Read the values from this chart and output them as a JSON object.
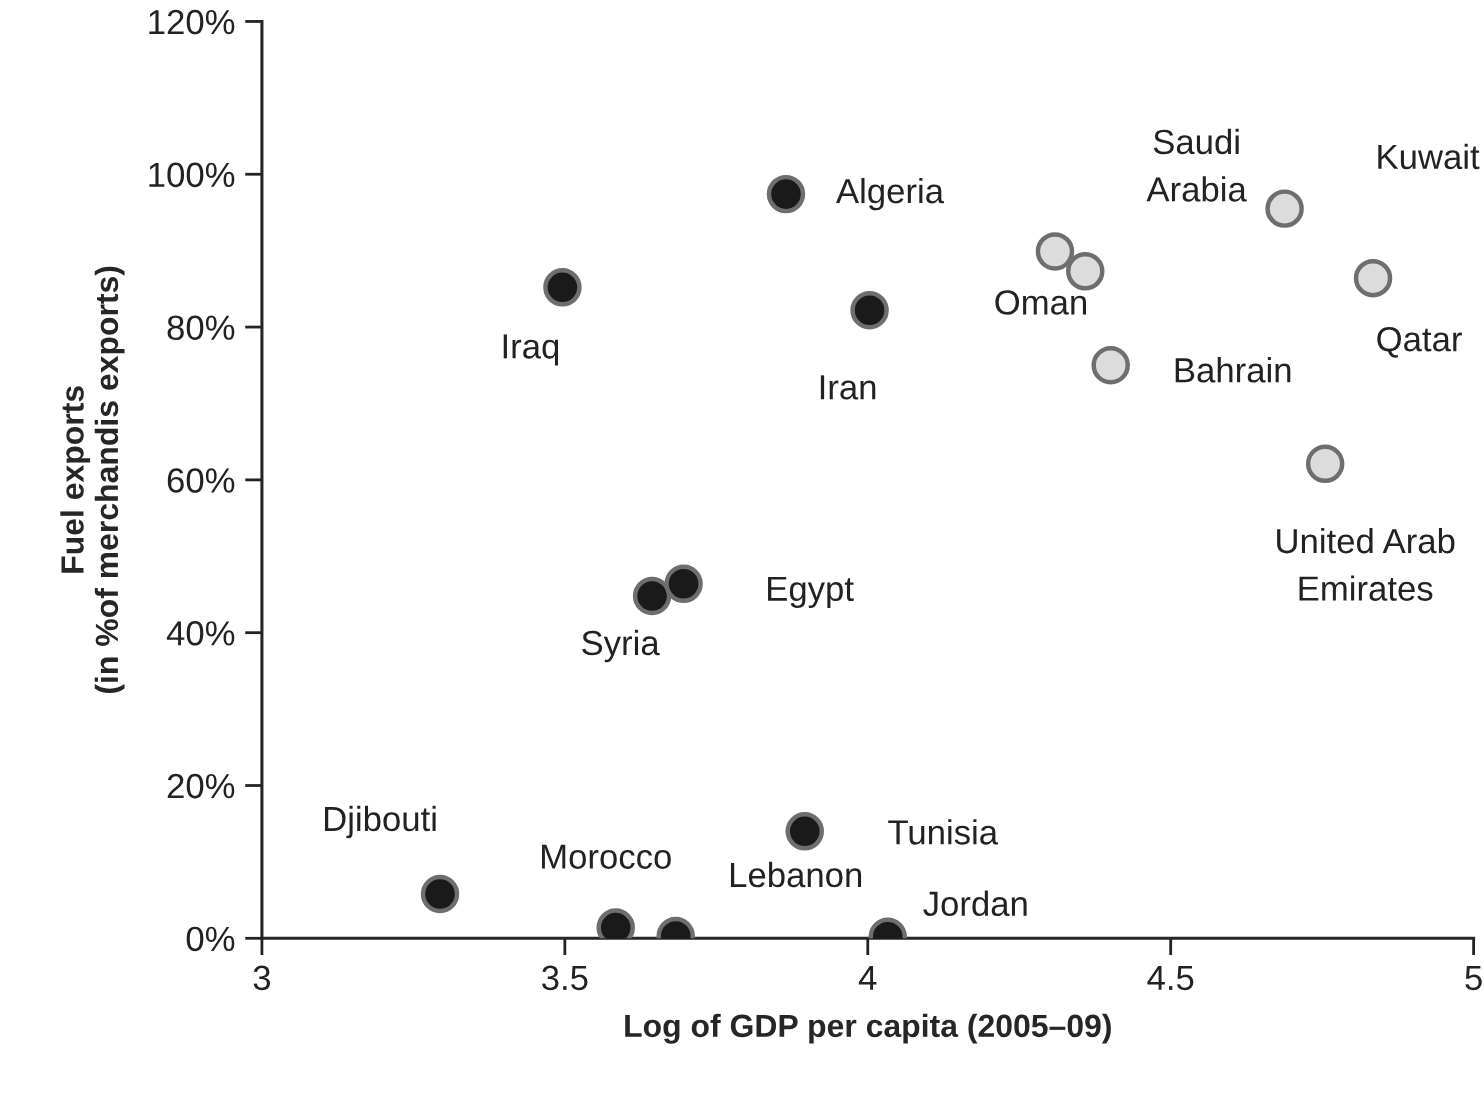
{
  "chart_data": {
    "type": "scatter",
    "xlabel": "Log of GDP per capita (2005–09)",
    "ylabel": "Fuel exports\n(in %of merchandis exports)",
    "series": [
      {
        "color": "#1a1a1a",
        "x": [
          3.496,
          3.865,
          4.003,
          3.644,
          3.696,
          3.896,
          3.294,
          3.584,
          3.683,
          4.033
        ],
        "values": [
          85.2,
          97.4,
          82.2,
          44.8,
          46.4,
          14.0,
          5.8,
          1.4,
          0.3,
          0.2
        ]
      },
      {
        "color": "#dcdcdc",
        "x": [
          4.309,
          4.359,
          4.401,
          4.688,
          4.834,
          4.755
        ],
        "values": [
          89.9,
          87.3,
          75.0,
          95.5,
          86.4,
          62.1
        ]
      }
    ],
    "annotations": [
      {
        "text": "Iraq",
        "x": 3.496,
        "y": 85.2
      },
      {
        "text": "Algeria",
        "x": 3.865,
        "y": 97.4
      },
      {
        "text": "Iran",
        "x": 4.003,
        "y": 82.2
      },
      {
        "text": "Oman",
        "x": 4.309,
        "y": 89.9
      },
      {
        "text": "Saudi\nArabia",
        "x": 4.688,
        "y": 95.5
      },
      "Kuwait",
      {
        "text": "Qatar",
        "x": 4.834,
        "y": 86.4
      },
      {
        "text": "Bahrain",
        "x": 4.401,
        "y": 75.0
      },
      {
        "text": "United Arab\nEmirates",
        "x": 4.755,
        "y": 62.1
      },
      {
        "text": "Egypt",
        "x": 3.696,
        "y": 46.4
      },
      {
        "text": "Syria",
        "x": 3.644,
        "y": 44.8
      },
      {
        "text": "Tunisia",
        "x": 3.896,
        "y": 14.0
      },
      {
        "text": "Djibouti",
        "x": 3.294,
        "y": 5.8
      },
      {
        "text": "Morocco",
        "x": 3.584,
        "y": 1.4
      },
      {
        "text": "Lebanon",
        "x": 3.683,
        "y": 0.3
      },
      {
        "text": "Jordan",
        "x": 4.033,
        "y": 0.2
      }
    ],
    "xlim": [
      3,
      5
    ],
    "xticks": [
      3,
      3.5,
      4,
      4.5,
      5
    ],
    "ylim": [
      0,
      120
    ],
    "yticks": [
      {
        "value": 0,
        "label": "0%"
      },
      {
        "value": 20,
        "label": "20%"
      },
      {
        "value": 40,
        "label": "40%"
      },
      {
        "value": 60,
        "label": "60%"
      },
      {
        "value": 80,
        "label": "80%"
      },
      {
        "value": 100,
        "label": "100%"
      },
      {
        "value": 120,
        "label": "120%"
      }
    ],
    "grid": false,
    "legend": false,
    "marker": "circle"
  }
}
